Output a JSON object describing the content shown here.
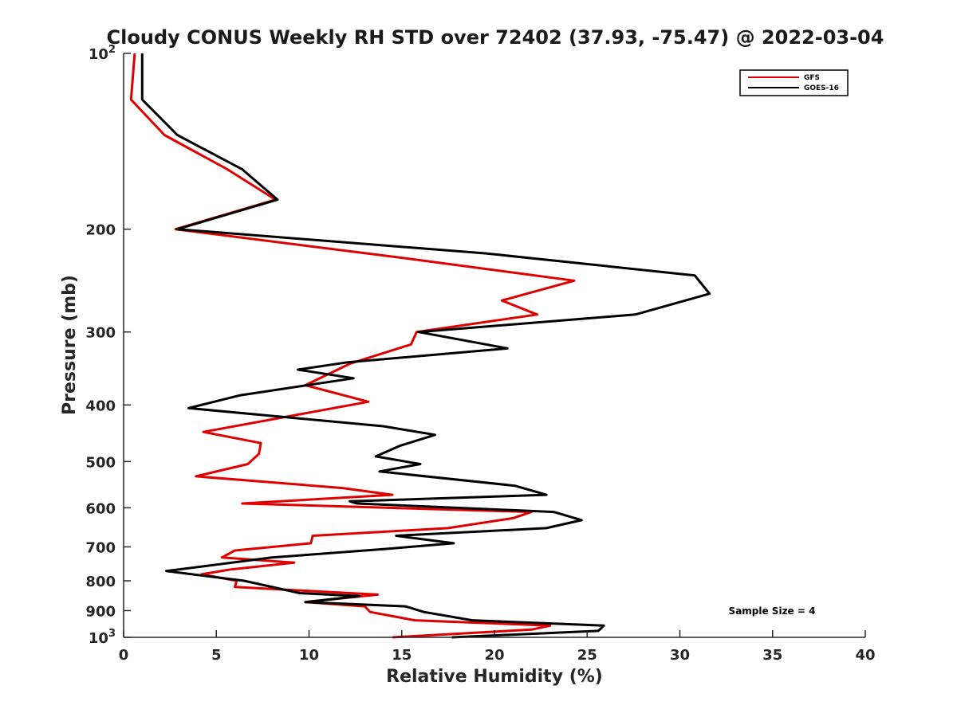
{
  "chart_data": {
    "type": "line",
    "title": "Cloudy CONUS Weekly RH STD over 72402 (37.93, -75.47) @ 2022-03-04",
    "xlabel": "Relative Humidity (%)",
    "ylabel": "Pressure (mb)",
    "xlim": [
      0,
      40
    ],
    "ylim": [
      100,
      1000
    ],
    "y_scale": "log",
    "y_reversed": true,
    "grid": false,
    "legend_position": "top-right",
    "x_ticks": [
      "0",
      "5",
      "10",
      "15",
      "20",
      "25",
      "30",
      "35",
      "40"
    ],
    "y_ticks": [
      {
        "value": 100,
        "base": "10",
        "exp": "2"
      },
      {
        "value": 200,
        "label": "200"
      },
      {
        "value": 300,
        "label": "300"
      },
      {
        "value": 400,
        "label": "400"
      },
      {
        "value": 500,
        "label": "500"
      },
      {
        "value": 600,
        "label": "600"
      },
      {
        "value": 700,
        "label": "700"
      },
      {
        "value": 800,
        "label": "800"
      },
      {
        "value": 900,
        "label": "900"
      },
      {
        "value": 1000,
        "base": "10",
        "exp": "3"
      }
    ],
    "annotation": "Sample Size = 4",
    "series": [
      {
        "name": "GFS",
        "color": "#e00000",
        "points": [
          [
            0.6,
            100
          ],
          [
            0.4,
            120
          ],
          [
            2.2,
            138
          ],
          [
            5.6,
            158
          ],
          [
            8.2,
            178
          ],
          [
            2.8,
            200
          ],
          [
            15.5,
            225
          ],
          [
            24.3,
            245
          ],
          [
            20.4,
            265
          ],
          [
            22.3,
            280
          ],
          [
            15.8,
            300
          ],
          [
            15.5,
            315
          ],
          [
            12.2,
            340
          ],
          [
            9.8,
            370
          ],
          [
            13.2,
            395
          ],
          [
            4.3,
            445
          ],
          [
            7.4,
            465
          ],
          [
            7.3,
            485
          ],
          [
            6.7,
            505
          ],
          [
            3.9,
            530
          ],
          [
            11.8,
            555
          ],
          [
            14.5,
            570
          ],
          [
            6.4,
            590
          ],
          [
            22.0,
            610
          ],
          [
            21.0,
            625
          ],
          [
            17.5,
            650
          ],
          [
            10.2,
            670
          ],
          [
            10.1,
            690
          ],
          [
            6.0,
            710
          ],
          [
            5.3,
            730
          ],
          [
            9.2,
            745
          ],
          [
            5.8,
            765
          ],
          [
            4.2,
            780
          ],
          [
            6.1,
            800
          ],
          [
            6.0,
            820
          ],
          [
            13.7,
            845
          ],
          [
            9.8,
            870
          ],
          [
            13.0,
            885
          ],
          [
            13.3,
            905
          ],
          [
            15.7,
            935
          ],
          [
            23.0,
            955
          ],
          [
            22.0,
            970
          ],
          [
            14.5,
            1000
          ]
        ]
      },
      {
        "name": "GOES-16",
        "color": "#000000",
        "points": [
          [
            1.0,
            100
          ],
          [
            1.0,
            120
          ],
          [
            2.9,
            138
          ],
          [
            6.4,
            158
          ],
          [
            8.3,
            178
          ],
          [
            2.9,
            200
          ],
          [
            19.5,
            220
          ],
          [
            30.8,
            240
          ],
          [
            31.6,
            258
          ],
          [
            27.6,
            280
          ],
          [
            15.9,
            300
          ],
          [
            20.7,
            320
          ],
          [
            12.1,
            338
          ],
          [
            9.4,
            348
          ],
          [
            12.4,
            360
          ],
          [
            6.3,
            385
          ],
          [
            3.5,
            405
          ],
          [
            14.0,
            435
          ],
          [
            16.8,
            450
          ],
          [
            14.9,
            470
          ],
          [
            13.6,
            490
          ],
          [
            16.0,
            505
          ],
          [
            13.8,
            520
          ],
          [
            21.1,
            550
          ],
          [
            22.8,
            570
          ],
          [
            12.2,
            585
          ],
          [
            12.6,
            590
          ],
          [
            23.2,
            610
          ],
          [
            24.7,
            630
          ],
          [
            22.8,
            650
          ],
          [
            14.7,
            670
          ],
          [
            17.8,
            690
          ],
          [
            14.3,
            705
          ],
          [
            8.0,
            730
          ],
          [
            2.3,
            770
          ],
          [
            6.5,
            800
          ],
          [
            9.5,
            840
          ],
          [
            12.7,
            850
          ],
          [
            9.8,
            870
          ],
          [
            15.2,
            885
          ],
          [
            16.2,
            905
          ],
          [
            18.8,
            935
          ],
          [
            25.9,
            955
          ],
          [
            25.6,
            975
          ],
          [
            17.7,
            1000
          ]
        ]
      }
    ]
  }
}
